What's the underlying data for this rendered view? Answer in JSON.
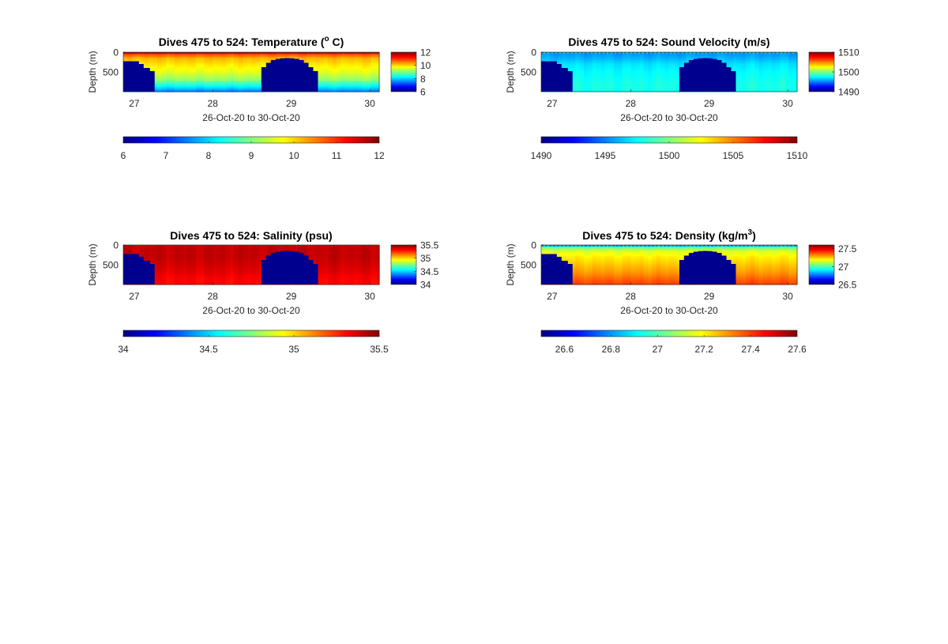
{
  "colors": {
    "landmask": "#00008F",
    "colormap": "jet",
    "colormap_stops": [
      "#00007F",
      "#0000FF",
      "#007FFF",
      "#00FFFF",
      "#7FFF7F",
      "#FFFF00",
      "#FF7F00",
      "#FF0000",
      "#7F0000"
    ]
  },
  "chart_data": [
    {
      "type": "heatmap",
      "title": "Dives 475 to 524: Temperature (",
      "title_sup": "o",
      "title_post": " C)",
      "xlabel": "26-Oct-20 to 30-Oct-20",
      "ylabel": "Depth (m)",
      "xlim": [
        26.86,
        30.12
      ],
      "xticks": [
        "27",
        "28",
        "29",
        "30"
      ],
      "xtick_values": [
        27,
        28,
        29,
        30
      ],
      "yticks": [
        "0",
        "500"
      ],
      "ytick_values": [
        0,
        500
      ],
      "ylim": [
        1000,
        0
      ],
      "clim": [
        6,
        12
      ],
      "colorbar_ticks": [
        "6",
        "8",
        "10",
        "12"
      ],
      "colorbar_tick_values": [
        6,
        8,
        10,
        12
      ],
      "hcolorbar_ticks": [
        "6",
        "7",
        "8",
        "9",
        "10",
        "11",
        "12"
      ],
      "hcolorbar_tick_values": [
        6,
        7,
        8,
        9,
        10,
        11,
        12
      ],
      "profile": {
        "depth": [
          0,
          20,
          60,
          150,
          300,
          500,
          700,
          850,
          1000
        ],
        "value": [
          11.8,
          11.5,
          10.8,
          10.2,
          9.9,
          9.6,
          9.1,
          8.3,
          7.5
        ]
      }
    },
    {
      "type": "heatmap",
      "title": "Dives 475 to 524: Sound Velocity (m/s)",
      "title_sup": "",
      "title_post": "",
      "xlabel": "26-Oct-20 to 30-Oct-20",
      "ylabel": "Depth (m)",
      "xlim": [
        26.86,
        30.12
      ],
      "xticks": [
        "27",
        "28",
        "29",
        "30"
      ],
      "xtick_values": [
        27,
        28,
        29,
        30
      ],
      "yticks": [
        "0",
        "500"
      ],
      "ytick_values": [
        0,
        500
      ],
      "ylim": [
        1000,
        0
      ],
      "clim": [
        1490,
        1510
      ],
      "colorbar_ticks": [
        "1490",
        "1500",
        "1510"
      ],
      "colorbar_tick_values": [
        1490,
        1500,
        1510
      ],
      "hcolorbar_ticks": [
        "1490",
        "1495",
        "1500",
        "1505",
        "1510"
      ],
      "hcolorbar_tick_values": [
        1490,
        1495,
        1500,
        1505,
        1510
      ],
      "profile": {
        "depth": [
          0,
          20,
          60,
          150,
          300,
          500,
          700,
          850,
          1000
        ],
        "value": [
          1497.5,
          1496.5,
          1495.5,
          1496.0,
          1497.0,
          1497.5,
          1497.8,
          1498.0,
          1497.8
        ]
      }
    },
    {
      "type": "heatmap",
      "title": "Dives 475 to 524: Salinity (psu)",
      "title_sup": "",
      "title_post": "",
      "xlabel": "26-Oct-20 to 30-Oct-20",
      "ylabel": "Depth (m)",
      "xlim": [
        26.86,
        30.12
      ],
      "xticks": [
        "27",
        "28",
        "29",
        "30"
      ],
      "xtick_values": [
        27,
        28,
        29,
        30
      ],
      "yticks": [
        "0",
        "500"
      ],
      "ytick_values": [
        0,
        500
      ],
      "ylim": [
        1000,
        0
      ],
      "clim": [
        34,
        35.5
      ],
      "colorbar_ticks": [
        "34",
        "34.5",
        "35",
        "35.5"
      ],
      "colorbar_tick_values": [
        34,
        34.5,
        35,
        35.5
      ],
      "hcolorbar_ticks": [
        "34",
        "34.5",
        "35",
        "35.5"
      ],
      "hcolorbar_tick_values": [
        34,
        34.5,
        35,
        35.5
      ],
      "profile": {
        "depth": [
          0,
          20,
          60,
          150,
          300,
          500,
          700,
          850,
          1000
        ],
        "value": [
          35.3,
          35.35,
          35.4,
          35.4,
          35.4,
          35.38,
          35.35,
          35.32,
          35.3
        ]
      }
    },
    {
      "type": "heatmap",
      "title": "Dives 475 to 524: Density (kg/m",
      "title_sup": "3",
      "title_post": ")",
      "xlabel": "26-Oct-20 to 30-Oct-20",
      "ylabel": "Depth (m)",
      "xlim": [
        26.86,
        30.12
      ],
      "xticks": [
        "27",
        "28",
        "29",
        "30"
      ],
      "xtick_values": [
        27,
        28,
        29,
        30
      ],
      "yticks": [
        "0",
        "500"
      ],
      "ytick_values": [
        0,
        500
      ],
      "ylim": [
        1000,
        0
      ],
      "clim": [
        26.5,
        27.6
      ],
      "colorbar_ticks": [
        "26.5",
        "27",
        "27.5"
      ],
      "colorbar_tick_values": [
        26.5,
        27,
        27.5
      ],
      "hcolorbar_ticks": [
        "26.6",
        "26.8",
        "27",
        "27.2",
        "27.4",
        "27.6"
      ],
      "hcolorbar_tick_values": [
        26.6,
        26.8,
        27,
        27.2,
        27.4,
        27.6
      ],
      "profile": {
        "depth": [
          0,
          20,
          60,
          150,
          300,
          500,
          700,
          850,
          1000
        ],
        "value": [
          26.8,
          26.85,
          27.0,
          27.15,
          27.2,
          27.25,
          27.3,
          27.35,
          27.4
        ]
      }
    }
  ],
  "bathymetry": {
    "x_edges": [
      26.86,
      26.97,
      27.06,
      27.12,
      27.2,
      27.26,
      27.31,
      28.62,
      28.68,
      28.74,
      28.8,
      28.86,
      28.92,
      28.98,
      29.04,
      29.1,
      29.16,
      29.22,
      29.28,
      29.34,
      30.12
    ],
    "seafloor_depth": [
      230,
      230,
      300,
      400,
      480,
      1000,
      1000,
      380,
      270,
      200,
      170,
      155,
      150,
      155,
      170,
      200,
      270,
      380,
      480,
      1000
    ]
  }
}
